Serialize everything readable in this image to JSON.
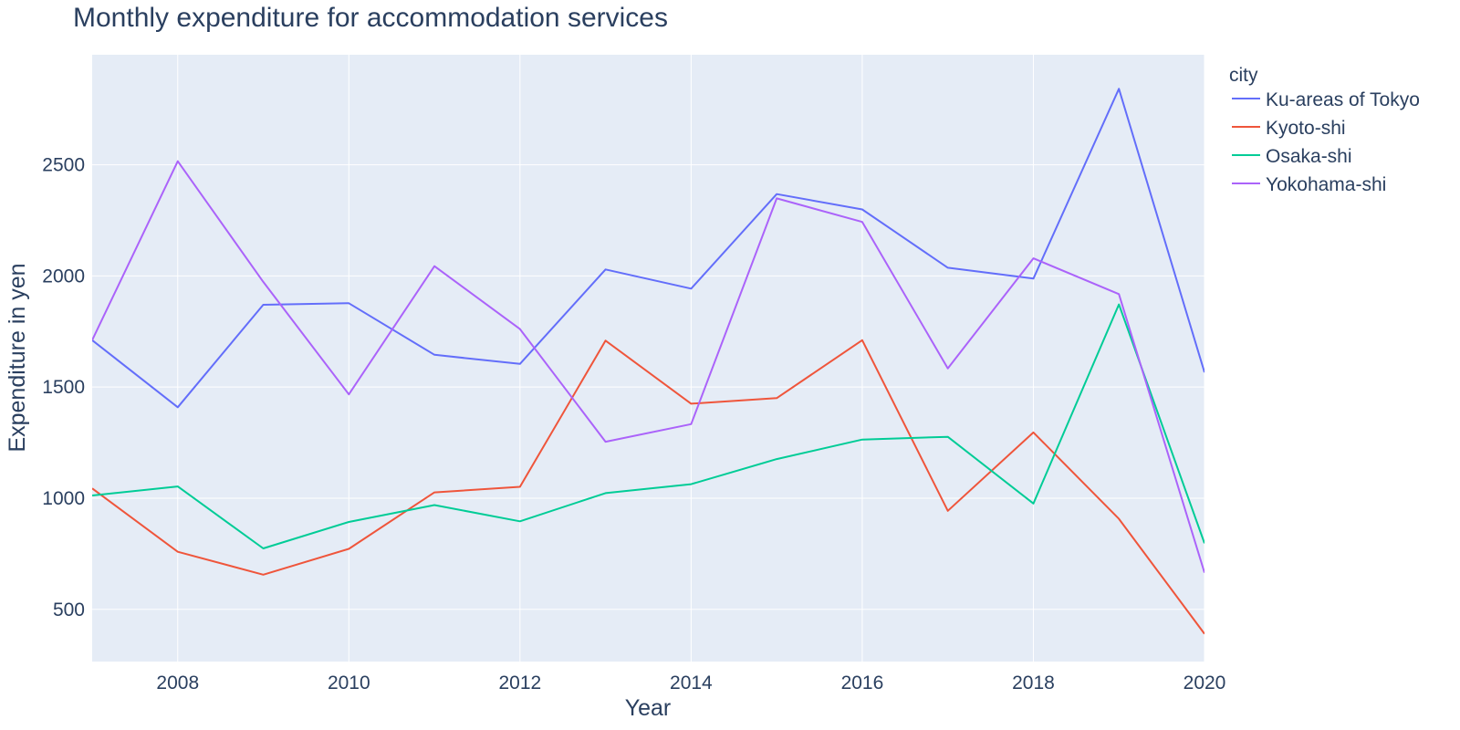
{
  "chart_data": {
    "type": "line",
    "title": "Monthly expenditure for accommodation services",
    "xlabel": "Year",
    "ylabel": "Expenditure in yen",
    "x": [
      2007,
      2008,
      2009,
      2010,
      2011,
      2012,
      2013,
      2014,
      2015,
      2016,
      2017,
      2018,
      2019,
      2020
    ],
    "xlim": [
      2007,
      2020
    ],
    "ylim": [
      265,
      2995
    ],
    "x_ticks": [
      2008,
      2010,
      2012,
      2014,
      2016,
      2018,
      2020
    ],
    "y_ticks": [
      500,
      1000,
      1500,
      2000,
      2500
    ],
    "grid": true,
    "plot_background": "#e5ecf6",
    "legend": {
      "title": "city",
      "position": "right"
    },
    "series": [
      {
        "name": "Ku-areas of Tokyo",
        "color": "#636efa",
        "values": [
          1711,
          1409,
          1870,
          1877,
          1645,
          1604,
          2029,
          1943,
          2368,
          2299,
          2037,
          1988,
          2842,
          1566
        ]
      },
      {
        "name": "Kyoto-shi",
        "color": "#ef553b",
        "values": [
          1044,
          759,
          656,
          772,
          1026,
          1051,
          1709,
          1425,
          1450,
          1711,
          943,
          1296,
          907,
          390
        ]
      },
      {
        "name": "Osaka-shi",
        "color": "#00cc96",
        "values": [
          1012,
          1053,
          774,
          893,
          969,
          896,
          1023,
          1063,
          1176,
          1264,
          1276,
          976,
          1872,
          797
        ]
      },
      {
        "name": "Yokohama-shi",
        "color": "#ab63fa",
        "values": [
          1711,
          2516,
          1973,
          1467,
          2044,
          1761,
          1254,
          1333,
          2349,
          2243,
          1584,
          2079,
          1918,
          665
        ]
      }
    ]
  }
}
